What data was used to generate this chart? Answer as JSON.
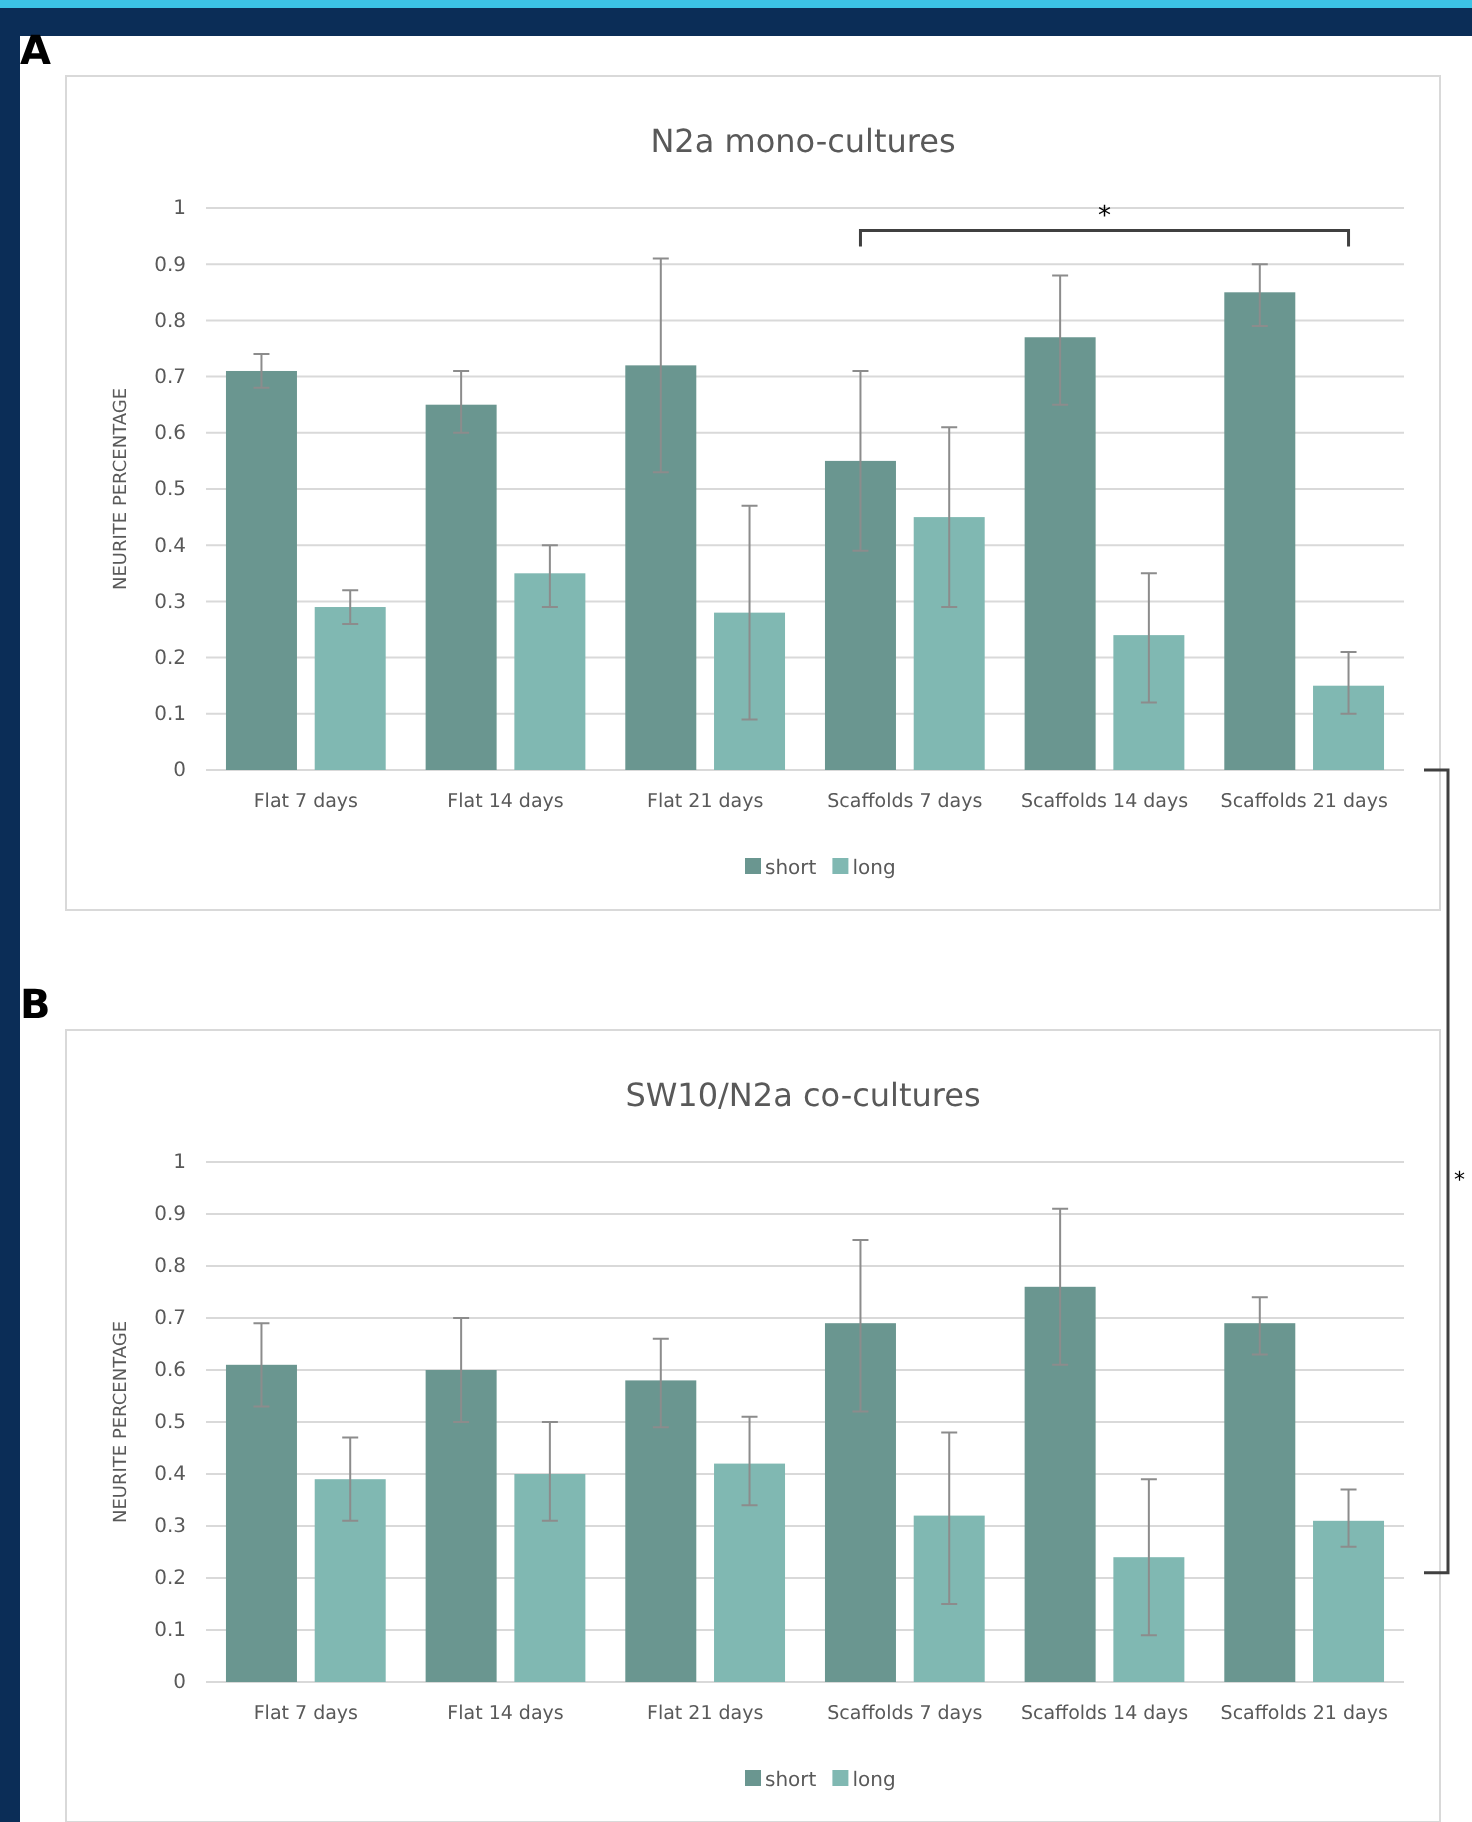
{
  "chart_data": [
    {
      "type": "bar",
      "title": "N2a mono-cultures",
      "ylabel": "NEURITE PERCENTAGE",
      "categories": [
        "Flat 7 days",
        "Flat 14 days",
        "Flat 21 days",
        "Scaffolds 7 days",
        "Scaffolds 14 days",
        "Scaffolds 21 days"
      ],
      "series": [
        {
          "name": "short",
          "color": "#6a9690",
          "values": [
            0.71,
            0.65,
            0.72,
            0.55,
            0.77,
            0.85
          ],
          "errors": [
            [
              0.68,
              0.74
            ],
            [
              0.6,
              0.71
            ],
            [
              0.53,
              0.91
            ],
            [
              0.39,
              0.71
            ],
            [
              0.65,
              0.88
            ],
            [
              0.79,
              0.9
            ]
          ]
        },
        {
          "name": "long",
          "color": "#80b8b2",
          "values": [
            0.29,
            0.35,
            0.28,
            0.45,
            0.24,
            0.15
          ],
          "errors": [
            [
              0.26,
              0.32
            ],
            [
              0.29,
              0.4
            ],
            [
              0.09,
              0.47
            ],
            [
              0.29,
              0.61
            ],
            [
              0.12,
              0.35
            ],
            [
              0.1,
              0.21
            ]
          ]
        }
      ],
      "ylim": [
        0,
        1
      ],
      "yticks": [
        0,
        0.1,
        0.2,
        0.3,
        0.4,
        0.5,
        0.6,
        0.7,
        0.8,
        0.9,
        1
      ],
      "grid": "y",
      "legend": "bottom",
      "annotations": [
        "A",
        "*"
      ]
    },
    {
      "type": "bar",
      "title": "SW10/N2a co-cultures",
      "ylabel": "NEURITE PERCENTAGE",
      "categories": [
        "Flat 7 days",
        "Flat 14 days",
        "Flat 21 days",
        "Scaffolds 7 days",
        "Scaffolds 14 days",
        "Scaffolds 21 days"
      ],
      "series": [
        {
          "name": "short",
          "color": "#6a9690",
          "values": [
            0.61,
            0.6,
            0.58,
            0.69,
            0.76,
            0.69
          ],
          "errors": [
            [
              0.53,
              0.69
            ],
            [
              0.5,
              0.7
            ],
            [
              0.49,
              0.66
            ],
            [
              0.52,
              0.85
            ],
            [
              0.61,
              0.91
            ],
            [
              0.63,
              0.74
            ]
          ]
        },
        {
          "name": "long",
          "color": "#80b8b2",
          "values": [
            0.39,
            0.4,
            0.42,
            0.32,
            0.24,
            0.31
          ],
          "errors": [
            [
              0.31,
              0.47
            ],
            [
              0.31,
              0.5
            ],
            [
              0.34,
              0.51
            ],
            [
              0.15,
              0.48
            ],
            [
              0.09,
              0.39
            ],
            [
              0.26,
              0.37
            ]
          ]
        }
      ],
      "ylim": [
        0,
        1
      ],
      "yticks": [
        0,
        0.1,
        0.2,
        0.3,
        0.4,
        0.5,
        0.6,
        0.7,
        0.8,
        0.9,
        1
      ],
      "grid": "y",
      "legend": "bottom",
      "annotations": [
        "B",
        "*"
      ]
    }
  ]
}
